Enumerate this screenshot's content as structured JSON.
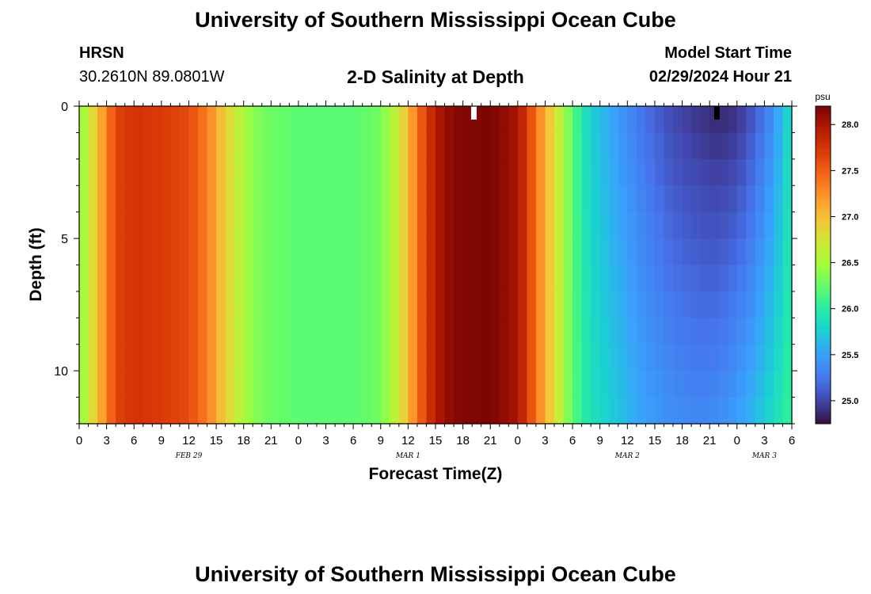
{
  "header": {
    "title": "University of Southern Mississippi Ocean Cube",
    "station": "HRSN",
    "coords": "30.2610N  89.0801W",
    "plot_title": "2-D Salinity at Depth",
    "start_label": "Model Start Time",
    "start_time": "02/29/2024 Hour 21"
  },
  "footer": {
    "title": "University of Southern Mississippi Ocean Cube"
  },
  "chart_data": {
    "type": "heatmap",
    "title": "2-D Salinity at Depth",
    "xlabel": "Forecast Time(Z)",
    "ylabel": "Depth (ft)",
    "x_start_hour": 0,
    "x_end_hour": 78,
    "x_tick_labels": [
      "0",
      "3",
      "6",
      "9",
      "12",
      "15",
      "18",
      "21",
      "0",
      "3",
      "6",
      "9",
      "12",
      "15",
      "18",
      "21",
      "0",
      "3",
      "6",
      "9",
      "12",
      "15",
      "18",
      "21",
      "0",
      "3",
      "6"
    ],
    "date_labels": [
      {
        "label": "FEB 29",
        "center_hour": 12
      },
      {
        "label": "MAR 1",
        "center_hour": 36
      },
      {
        "label": "MAR 2",
        "center_hour": 60
      },
      {
        "label": "MAR 3",
        "center_hour": 75
      }
    ],
    "y_ticks": [
      0,
      5,
      10
    ],
    "ylim": [
      0,
      12
    ],
    "colorbar": {
      "unit": "psu",
      "ticks": [
        "25.0",
        "25.5",
        "26.0",
        "26.5",
        "27.0",
        "27.5",
        "28.0"
      ],
      "min": 24.75,
      "max": 28.2
    },
    "salinity_surface": [
      {
        "hour": 0,
        "value": 26.3
      },
      {
        "hour": 2,
        "value": 27.0
      },
      {
        "hour": 4,
        "value": 27.65
      },
      {
        "hour": 6,
        "value": 27.75
      },
      {
        "hour": 9,
        "value": 27.7
      },
      {
        "hour": 12,
        "value": 27.6
      },
      {
        "hour": 14,
        "value": 27.35
      },
      {
        "hour": 16,
        "value": 26.9
      },
      {
        "hour": 18,
        "value": 26.5
      },
      {
        "hour": 20,
        "value": 26.3
      },
      {
        "hour": 24,
        "value": 26.2
      },
      {
        "hour": 30,
        "value": 26.2
      },
      {
        "hour": 33,
        "value": 26.3
      },
      {
        "hour": 35,
        "value": 26.7
      },
      {
        "hour": 37,
        "value": 27.4
      },
      {
        "hour": 39,
        "value": 27.95
      },
      {
        "hour": 41,
        "value": 28.15
      },
      {
        "hour": 45,
        "value": 28.2
      },
      {
        "hour": 48,
        "value": 28.0
      },
      {
        "hour": 50,
        "value": 27.4
      },
      {
        "hour": 52,
        "value": 26.8
      },
      {
        "hour": 54,
        "value": 26.2
      },
      {
        "hour": 56,
        "value": 25.75
      },
      {
        "hour": 59,
        "value": 25.45
      },
      {
        "hour": 62,
        "value": 25.2
      },
      {
        "hour": 65,
        "value": 25.0
      },
      {
        "hour": 68,
        "value": 24.9
      },
      {
        "hour": 70,
        "value": 24.85
      },
      {
        "hour": 72,
        "value": 24.9
      },
      {
        "hour": 74,
        "value": 25.1
      },
      {
        "hour": 76,
        "value": 25.4
      },
      {
        "hour": 78,
        "value": 25.9
      }
    ],
    "salinity_bottom": [
      {
        "hour": 0,
        "value": 26.3
      },
      {
        "hour": 2,
        "value": 27.0
      },
      {
        "hour": 4,
        "value": 27.65
      },
      {
        "hour": 6,
        "value": 27.75
      },
      {
        "hour": 9,
        "value": 27.7
      },
      {
        "hour": 12,
        "value": 27.6
      },
      {
        "hour": 14,
        "value": 27.35
      },
      {
        "hour": 16,
        "value": 26.9
      },
      {
        "hour": 18,
        "value": 26.5
      },
      {
        "hour": 20,
        "value": 26.3
      },
      {
        "hour": 24,
        "value": 26.2
      },
      {
        "hour": 30,
        "value": 26.2
      },
      {
        "hour": 33,
        "value": 26.3
      },
      {
        "hour": 35,
        "value": 26.7
      },
      {
        "hour": 37,
        "value": 27.4
      },
      {
        "hour": 39,
        "value": 27.95
      },
      {
        "hour": 41,
        "value": 28.15
      },
      {
        "hour": 45,
        "value": 28.2
      },
      {
        "hour": 48,
        "value": 28.0
      },
      {
        "hour": 50,
        "value": 27.4
      },
      {
        "hour": 52,
        "value": 26.8
      },
      {
        "hour": 54,
        "value": 26.2
      },
      {
        "hour": 56,
        "value": 25.9
      },
      {
        "hour": 59,
        "value": 25.7
      },
      {
        "hour": 62,
        "value": 25.5
      },
      {
        "hour": 65,
        "value": 25.4
      },
      {
        "hour": 68,
        "value": 25.35
      },
      {
        "hour": 70,
        "value": 25.4
      },
      {
        "hour": 72,
        "value": 25.5
      },
      {
        "hour": 74,
        "value": 25.65
      },
      {
        "hour": 76,
        "value": 25.85
      },
      {
        "hour": 78,
        "value": 26.1
      }
    ],
    "markers": [
      {
        "hour": 43.2,
        "color": "#ffffff"
      },
      {
        "hour": 69.8,
        "color": "#000000"
      }
    ]
  }
}
